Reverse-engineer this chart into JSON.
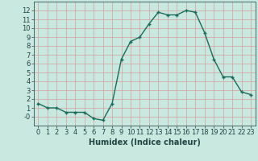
{
  "x": [
    0,
    1,
    2,
    3,
    4,
    5,
    6,
    7,
    8,
    9,
    10,
    11,
    12,
    13,
    14,
    15,
    16,
    17,
    18,
    19,
    20,
    21,
    22,
    23
  ],
  "y": [
    1.5,
    1.0,
    1.0,
    0.5,
    0.5,
    0.5,
    -0.2,
    -0.4,
    1.5,
    6.5,
    8.5,
    9.0,
    10.5,
    11.8,
    11.5,
    11.5,
    12.0,
    11.8,
    9.5,
    6.5,
    4.5,
    4.5,
    2.8,
    2.5
  ],
  "line_color": "#1a6b5a",
  "marker": "+",
  "marker_size": 3,
  "marker_lw": 1.0,
  "line_width": 1.0,
  "bg_color": "#c8e8e0",
  "grid_color": "#d4a0a0",
  "xlabel": "Humidex (Indice chaleur)",
  "xlabel_fontsize": 7,
  "tick_fontsize": 6,
  "ylim": [
    -1,
    13
  ],
  "xlim": [
    -0.5,
    23.5
  ],
  "yticks": [
    0,
    1,
    2,
    3,
    4,
    5,
    6,
    7,
    8,
    9,
    10,
    11,
    12
  ],
  "ytick_labels": [
    "-0",
    "1",
    "2",
    "3",
    "4",
    "5",
    "6",
    "7",
    "8",
    "9",
    "10",
    "11",
    "12"
  ],
  "xticks": [
    0,
    1,
    2,
    3,
    4,
    5,
    6,
    7,
    8,
    9,
    10,
    11,
    12,
    13,
    14,
    15,
    16,
    17,
    18,
    19,
    20,
    21,
    22,
    23
  ]
}
